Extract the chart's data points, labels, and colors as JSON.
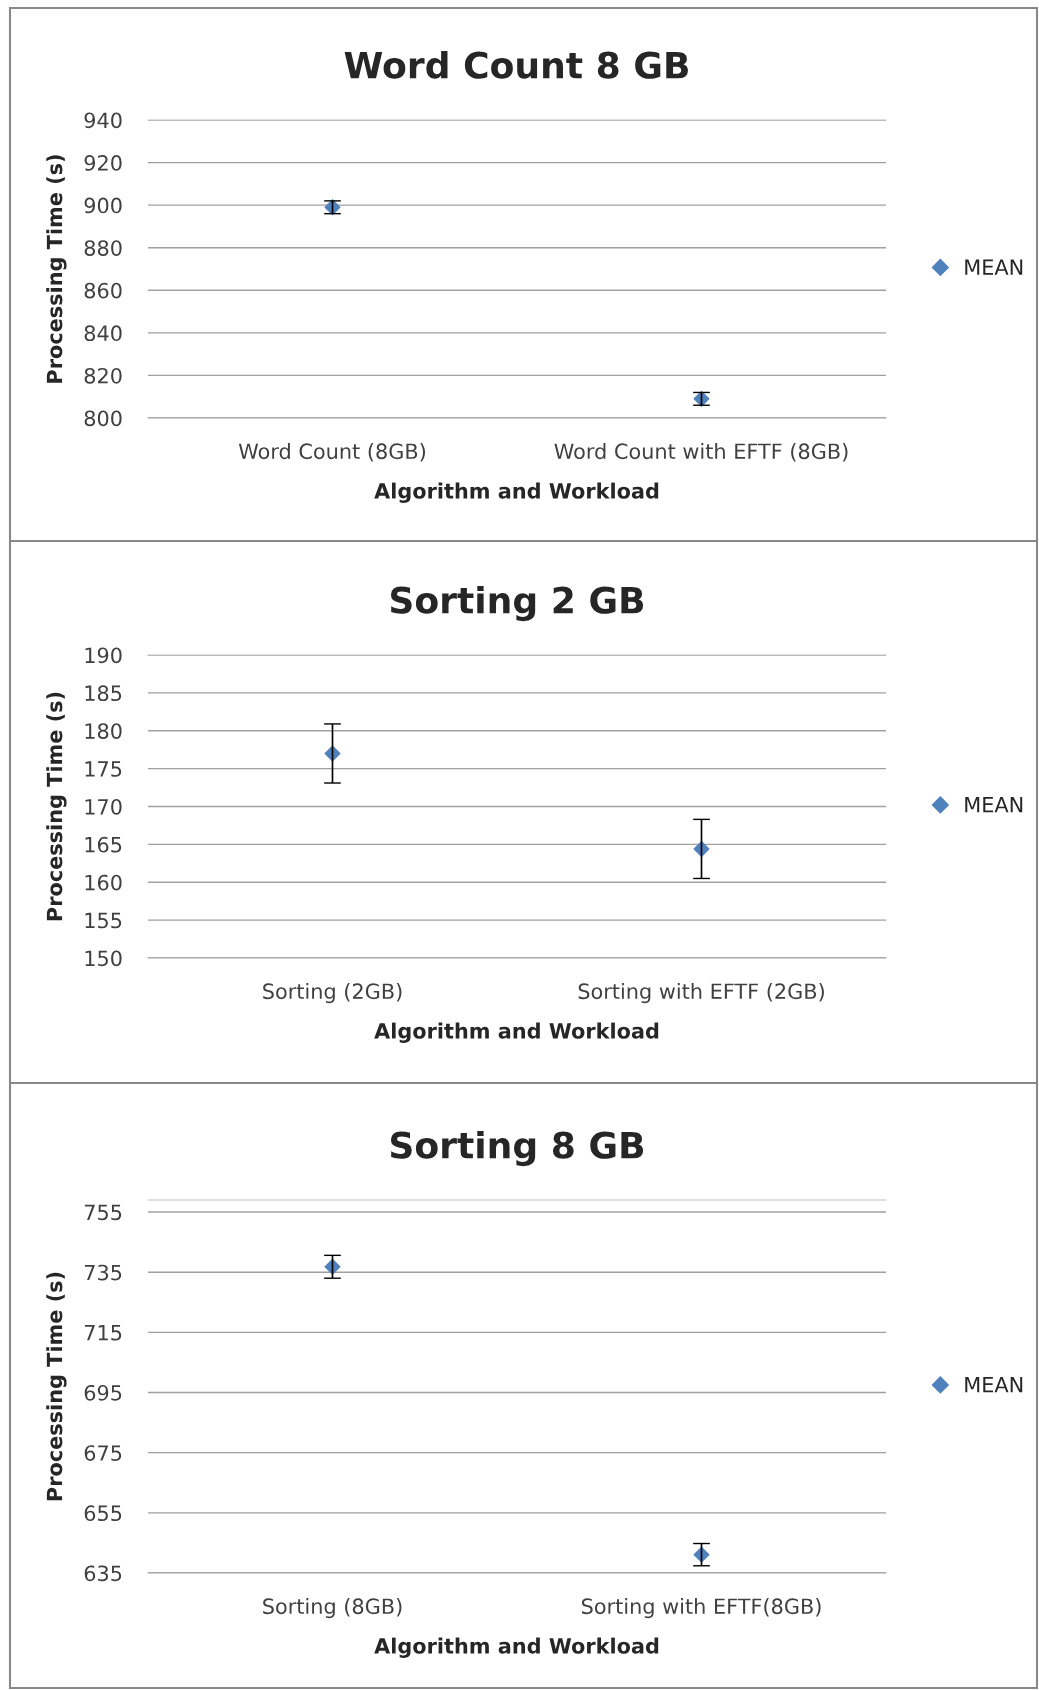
{
  "chart_data": [
    {
      "type": "scatter",
      "title": "Word Count 8 GB",
      "xlabel": "Algorithm and Workload",
      "ylabel": "Processing Time (s)",
      "categories": [
        "Word Count (8GB)",
        "Word Count with EFTF (8GB)"
      ],
      "series": [
        {
          "name": "MEAN",
          "color": "#4f81bd",
          "values": [
            899,
            809
          ],
          "errors": [
            3,
            3
          ]
        }
      ],
      "ylim": [
        800,
        940
      ],
      "yticks": [
        800,
        820,
        840,
        860,
        880,
        900,
        920,
        940
      ],
      "grid": "y",
      "legend": "right",
      "marker": "diamond"
    },
    {
      "type": "scatter",
      "title": "Sorting 2 GB",
      "xlabel": "Algorithm and Workload",
      "ylabel": "Processing Time (s)",
      "categories": [
        "Sorting (2GB)",
        "Sorting with EFTF (2GB)"
      ],
      "series": [
        {
          "name": "MEAN",
          "color": "#4f81bd",
          "values": [
            177,
            164.4
          ],
          "errors": [
            3.9,
            3.9
          ]
        }
      ],
      "ylim": [
        150,
        190
      ],
      "yticks": [
        150,
        155,
        160,
        165,
        170,
        175,
        180,
        185,
        190
      ],
      "grid": "y",
      "legend": "right",
      "marker": "diamond"
    },
    {
      "type": "scatter",
      "title": "Sorting 8 GB",
      "xlabel": "Algorithm and Workload",
      "ylabel": "Processing Time (s)",
      "categories": [
        "Sorting (8GB)",
        "Sorting with EFTF(8GB)"
      ],
      "series": [
        {
          "name": "MEAN",
          "color": "#4f81bd",
          "values": [
            736.8,
            641.1
          ],
          "errors": [
            3.8,
            3.7
          ]
        }
      ],
      "ylim": [
        635,
        759
      ],
      "yticks": [
        635,
        655,
        675,
        695,
        715,
        735,
        755
      ],
      "grid": "y",
      "legend": "right",
      "marker": "diamond"
    }
  ]
}
